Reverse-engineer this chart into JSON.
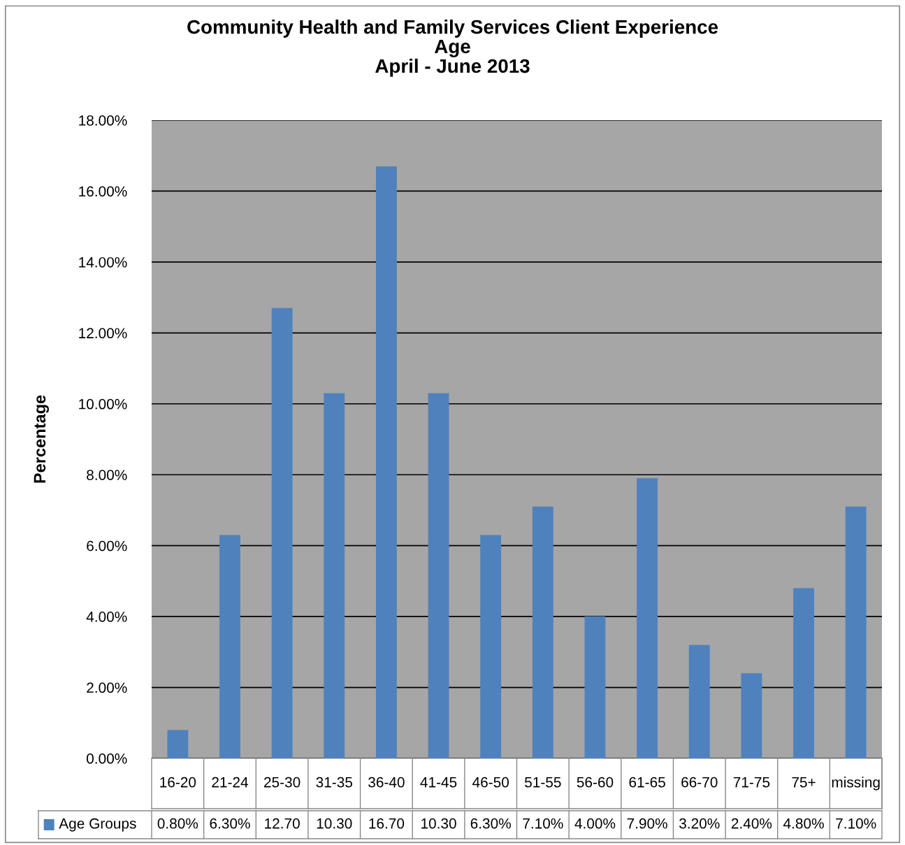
{
  "chart_data": {
    "type": "bar",
    "title": "Community Health and Family Services Client Experience\nAge\nApril - June 2013",
    "ylabel": "Percentage",
    "categories": [
      "16-20",
      "21-24",
      "25-30",
      "31-35",
      "36-40",
      "41-45",
      "46-50",
      "51-55",
      "56-60",
      "61-65",
      "66-70",
      "71-75",
      "75+",
      "missing"
    ],
    "series": [
      {
        "name": "Age Groups",
        "color": "#4f81bd",
        "values": [
          0.8,
          6.3,
          12.7,
          10.3,
          16.7,
          10.3,
          6.3,
          7.1,
          4.0,
          7.9,
          3.2,
          2.4,
          4.8,
          7.1
        ],
        "value_labels": [
          "0.80%",
          "6.30%",
          "12.70",
          "10.30",
          "16.70",
          "10.30",
          "6.30%",
          "7.10%",
          "4.00%",
          "7.90%",
          "3.20%",
          "2.40%",
          "4.80%",
          "7.10%"
        ]
      }
    ],
    "ylim": [
      0,
      18
    ],
    "yticks": [
      {
        "value": 0,
        "label": "0.00%"
      },
      {
        "value": 2,
        "label": "2.00%"
      },
      {
        "value": 4,
        "label": "4.00%"
      },
      {
        "value": 6,
        "label": "6.00%"
      },
      {
        "value": 8,
        "label": "8.00%"
      },
      {
        "value": 10,
        "label": "10.00%"
      },
      {
        "value": 12,
        "label": "12.00%"
      },
      {
        "value": 14,
        "label": "14.00%"
      },
      {
        "value": 16,
        "label": "16.00%"
      },
      {
        "value": 18,
        "label": "18.00%"
      }
    ],
    "grid": "y",
    "legend": "bottom"
  }
}
